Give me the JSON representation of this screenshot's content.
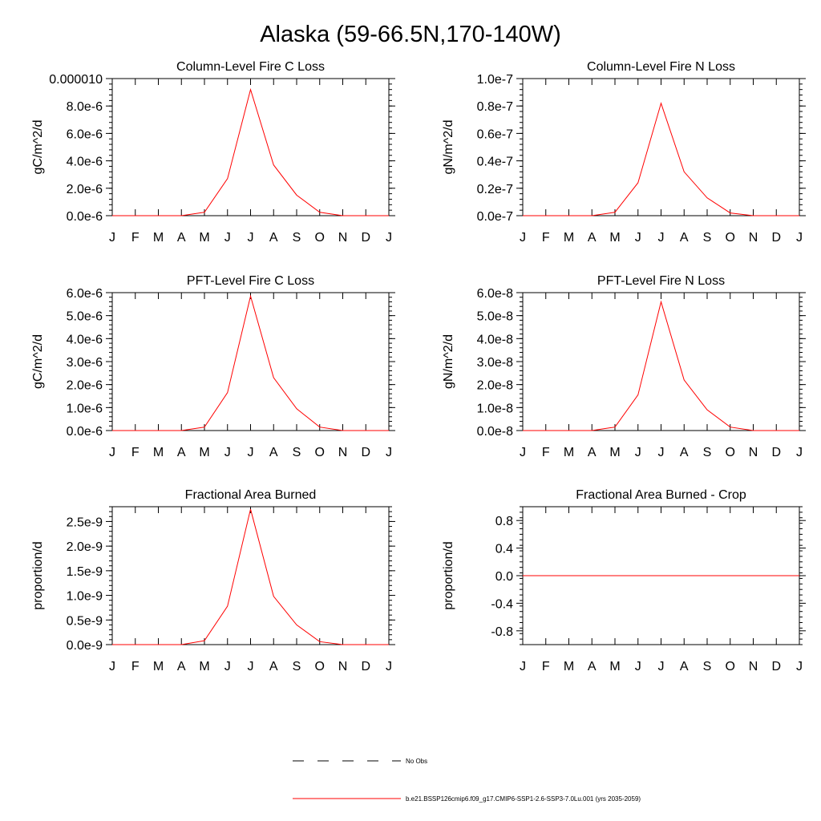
{
  "page": {
    "title": "Alaska (59-66.5N,170-140W)"
  },
  "legend": {
    "entries": [
      {
        "label": "No Obs",
        "style": "dashed",
        "color": "#000000"
      },
      {
        "label": "b.e21.BSSP126cmip6.f09_g17.CMIP6-SSP1-2.6-SSP3-7.0Lu.001 (yrs 2035-2059)",
        "style": "solid",
        "color": "#ff0000"
      }
    ]
  },
  "colors": {
    "series": "#ff0000",
    "axis": "#000000"
  },
  "chart_data": [
    {
      "type": "line",
      "title": "Column-Level Fire C Loss",
      "ylabel": "gC/m^2/d",
      "categories": [
        "J",
        "F",
        "M",
        "A",
        "M",
        "J",
        "J",
        "A",
        "S",
        "O",
        "N",
        "D",
        "J"
      ],
      "ylim": [
        0,
        1e-05
      ],
      "yticks": [
        0,
        2e-06,
        4e-06,
        6e-06,
        8e-06,
        1e-05
      ],
      "ytick_labels": [
        "0.0e-6",
        "2.0e-6",
        "4.0e-6",
        "6.0e-6",
        "8.0e-6",
        "0.000010"
      ],
      "grid": false,
      "series": [
        {
          "values": [
            0,
            0,
            0,
            0,
            2.5e-07,
            2.7e-06,
            9.2e-06,
            3.7e-06,
            1.5e-06,
            2.5e-07,
            0,
            0,
            0
          ]
        }
      ]
    },
    {
      "type": "line",
      "title": "Column-Level Fire N Loss",
      "ylabel": "gN/m^2/d",
      "categories": [
        "J",
        "F",
        "M",
        "A",
        "M",
        "J",
        "J",
        "A",
        "S",
        "O",
        "N",
        "D",
        "J"
      ],
      "ylim": [
        0,
        1e-07
      ],
      "yticks": [
        0,
        2e-08,
        4e-08,
        6e-08,
        8e-08,
        1e-07
      ],
      "ytick_labels": [
        "0.0e-7",
        "0.2e-7",
        "0.4e-7",
        "0.6e-7",
        "0.8e-7",
        "1.0e-7"
      ],
      "grid": false,
      "series": [
        {
          "values": [
            0,
            0,
            0,
            0,
            2.5e-09,
            2.4e-08,
            8.2e-08,
            3.2e-08,
            1.3e-08,
            2e-09,
            0,
            0,
            0
          ]
        }
      ]
    },
    {
      "type": "line",
      "title": "PFT-Level Fire C Loss",
      "ylabel": "gC/m^2/d",
      "categories": [
        "J",
        "F",
        "M",
        "A",
        "M",
        "J",
        "J",
        "A",
        "S",
        "O",
        "N",
        "D",
        "J"
      ],
      "ylim": [
        0,
        6e-06
      ],
      "yticks": [
        0,
        1e-06,
        2e-06,
        3e-06,
        4e-06,
        5e-06,
        6e-06
      ],
      "ytick_labels": [
        "0.0e-6",
        "1.0e-6",
        "2.0e-6",
        "3.0e-6",
        "4.0e-6",
        "5.0e-6",
        "6.0e-6"
      ],
      "grid": false,
      "series": [
        {
          "values": [
            0,
            0,
            0,
            0,
            1.5e-07,
            1.65e-06,
            5.85e-06,
            2.3e-06,
            9.5e-07,
            1.5e-07,
            0,
            0,
            0
          ]
        }
      ]
    },
    {
      "type": "line",
      "title": "PFT-Level Fire N Loss",
      "ylabel": "gN/m^2/d",
      "categories": [
        "J",
        "F",
        "M",
        "A",
        "M",
        "J",
        "J",
        "A",
        "S",
        "O",
        "N",
        "D",
        "J"
      ],
      "ylim": [
        0,
        6e-08
      ],
      "yticks": [
        0,
        1e-08,
        2e-08,
        3e-08,
        4e-08,
        5e-08,
        6e-08
      ],
      "ytick_labels": [
        "0.0e-8",
        "1.0e-8",
        "2.0e-8",
        "3.0e-8",
        "4.0e-8",
        "5.0e-8",
        "6.0e-8"
      ],
      "grid": false,
      "series": [
        {
          "values": [
            0,
            0,
            0,
            0,
            1.5e-09,
            1.55e-08,
            5.6e-08,
            2.2e-08,
            9e-09,
            1.5e-09,
            0,
            0,
            0
          ]
        }
      ]
    },
    {
      "type": "line",
      "title": "Fractional Area Burned",
      "ylabel": "proportion/d",
      "categories": [
        "J",
        "F",
        "M",
        "A",
        "M",
        "J",
        "J",
        "A",
        "S",
        "O",
        "N",
        "D",
        "J"
      ],
      "ylim": [
        0,
        2.8e-09
      ],
      "yticks": [
        0,
        5e-10,
        1e-09,
        1.5e-09,
        2e-09,
        2.5e-09
      ],
      "ytick_labels": [
        "0.0e-9",
        "0.5e-9",
        "1.0e-9",
        "1.5e-9",
        "2.0e-9",
        "2.5e-9"
      ],
      "grid": false,
      "series": [
        {
          "values": [
            0,
            0,
            0,
            0,
            8e-11,
            7.8e-10,
            2.75e-09,
            9.8e-10,
            4e-10,
            6e-11,
            0,
            0,
            0
          ]
        }
      ]
    },
    {
      "type": "line",
      "title": "Fractional Area Burned - Crop",
      "ylabel": "proportion/d",
      "categories": [
        "J",
        "F",
        "M",
        "A",
        "M",
        "J",
        "J",
        "A",
        "S",
        "O",
        "N",
        "D",
        "J"
      ],
      "ylim": [
        -1.0,
        1.0
      ],
      "yticks": [
        -0.8,
        -0.4,
        0,
        0.4,
        0.8
      ],
      "ytick_labels": [
        "-0.8",
        "-0.4",
        "0.0",
        "0.4",
        "0.8"
      ],
      "grid": false,
      "series": [
        {
          "values": [
            0,
            0,
            0,
            0,
            0,
            0,
            0,
            0,
            0,
            0,
            0,
            0,
            0
          ]
        }
      ]
    }
  ]
}
